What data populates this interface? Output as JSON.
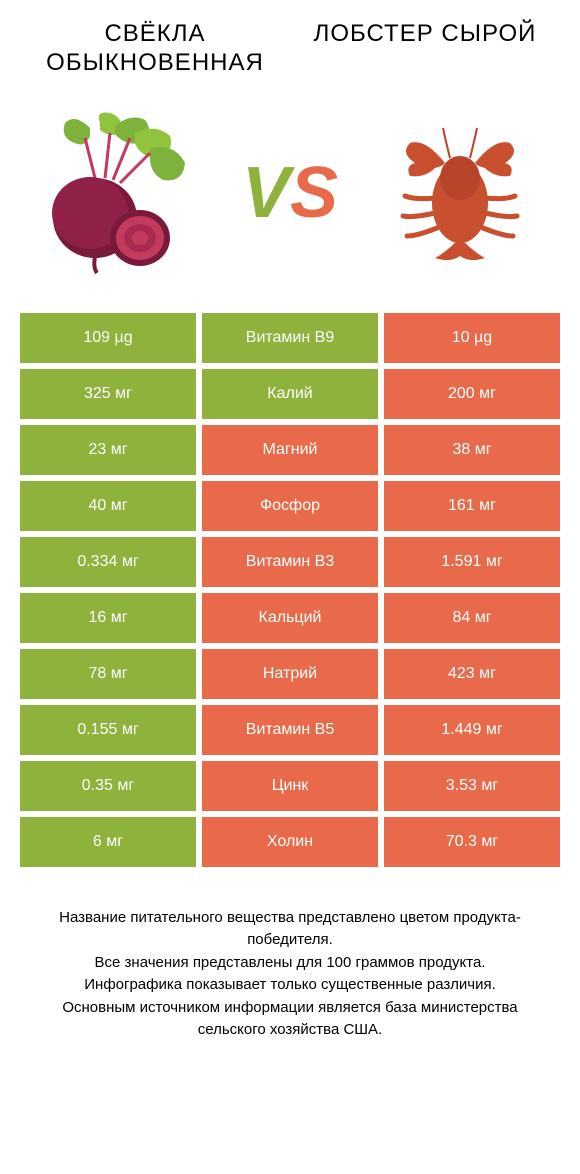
{
  "titles": {
    "left": "СВЁКЛА ОБЫКНОВЕННАЯ",
    "right": "ЛОБСТЕР СЫРОЙ"
  },
  "vs": {
    "v": "V",
    "s": "S"
  },
  "colors": {
    "green": "#8fb23c",
    "orange": "#e86a4a"
  },
  "rows": [
    {
      "left": "109 µg",
      "label": "Витамин B9",
      "right": "10 µg",
      "winner": "left"
    },
    {
      "left": "325 мг",
      "label": "Калий",
      "right": "200 мг",
      "winner": "left"
    },
    {
      "left": "23 мг",
      "label": "Магний",
      "right": "38 мг",
      "winner": "right"
    },
    {
      "left": "40 мг",
      "label": "Фосфор",
      "right": "161 мг",
      "winner": "right"
    },
    {
      "left": "0.334 мг",
      "label": "Витамин B3",
      "right": "1.591 мг",
      "winner": "right"
    },
    {
      "left": "16 мг",
      "label": "Кальций",
      "right": "84 мг",
      "winner": "right"
    },
    {
      "left": "78 мг",
      "label": "Натрий",
      "right": "423 мг",
      "winner": "right"
    },
    {
      "left": "0.155 мг",
      "label": "Витамин B5",
      "right": "1.449 мг",
      "winner": "right"
    },
    {
      "left": "0.35 мг",
      "label": "Цинк",
      "right": "3.53 мг",
      "winner": "right"
    },
    {
      "left": "6 мг",
      "label": "Холин",
      "right": "70.3 мг",
      "winner": "right"
    }
  ],
  "footer": [
    "Название питательного вещества представлено цветом продукта-победителя.",
    "Все значения представлены для 100 граммов продукта.",
    "Инфографика показывает только существенные различия.",
    "Основным источником информации является база министерства сельского хозяйства США."
  ]
}
